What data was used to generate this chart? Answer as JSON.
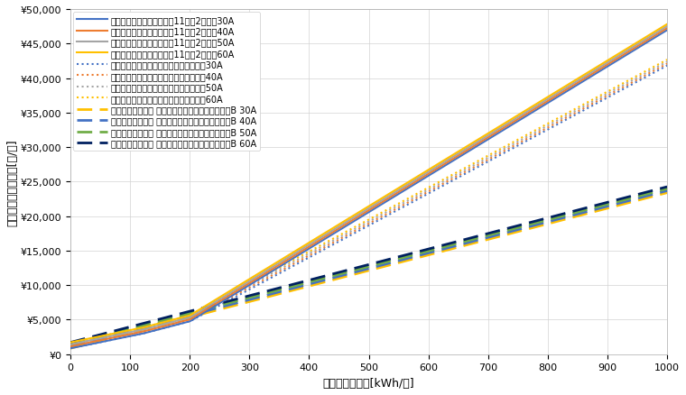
{
  "xlabel": "月間電力使用量[kWh/月]",
  "ylabel": "月毎電気料金請求額[円/月]",
  "xlim": [
    0,
    1000
  ],
  "ylim": [
    0,
    50000
  ],
  "xticks": [
    0,
    100,
    200,
    300,
    400,
    500,
    600,
    700,
    800,
    900,
    1000
  ],
  "yticks": [
    0,
    5000,
    10000,
    15000,
    20000,
    25000,
    30000,
    35000,
    40000,
    45000,
    50000
  ],
  "season_winter": {
    "label_prefix": "エネとくシーズンプラン（11月～2月）",
    "amps": [
      "30A",
      "40A",
      "50A",
      "60A"
    ],
    "colors": [
      "#4472C4",
      "#ED7D31",
      "#A5A5A5",
      "#FFC000"
    ],
    "basic_charges": [
      858.0,
      1144.0,
      1430.0,
      1716.0
    ],
    "tier1_end": 120,
    "tier1_rate": 17.58,
    "tier2_end": 200,
    "tier2_rate": 22.37,
    "tier3_rate": 52.74,
    "linestyle": "solid",
    "linewidth": 1.5
  },
  "season_other": {
    "label_prefix": "エネとくシーズンプラン（左記以外）",
    "amps": [
      "30A",
      "40A",
      "50A",
      "60A"
    ],
    "colors": [
      "#4472C4",
      "#ED7D31",
      "#A5A5A5",
      "#FFC000"
    ],
    "basic_charges": [
      858.0,
      1144.0,
      1430.0,
      1716.0
    ],
    "tier1_end": 120,
    "tier1_rate": 17.58,
    "tier2_end": 200,
    "tier2_rate": 22.37,
    "tier3_rate": 46.31,
    "linestyle": "dotted",
    "linewidth": 1.5
  },
  "shin_nippon": {
    "label_prefix": "新日本エネルギー 新ネクストバリュープラン電灯B",
    "amps": [
      "30A",
      "40A",
      "50A",
      "60A"
    ],
    "colors": [
      "#FFC000",
      "#4472C4",
      "#70AD47",
      "#002060"
    ],
    "basic_charges": [
      858.0,
      1144.0,
      1430.0,
      1716.0
    ],
    "rate": 22.54,
    "linestyle": "dashed",
    "linewidth": 2.0
  },
  "background_color": "#FFFFFF",
  "grid_color": "#D3D3D3",
  "legend_fontsize": 7,
  "axis_fontsize": 9,
  "tick_fontsize": 8
}
